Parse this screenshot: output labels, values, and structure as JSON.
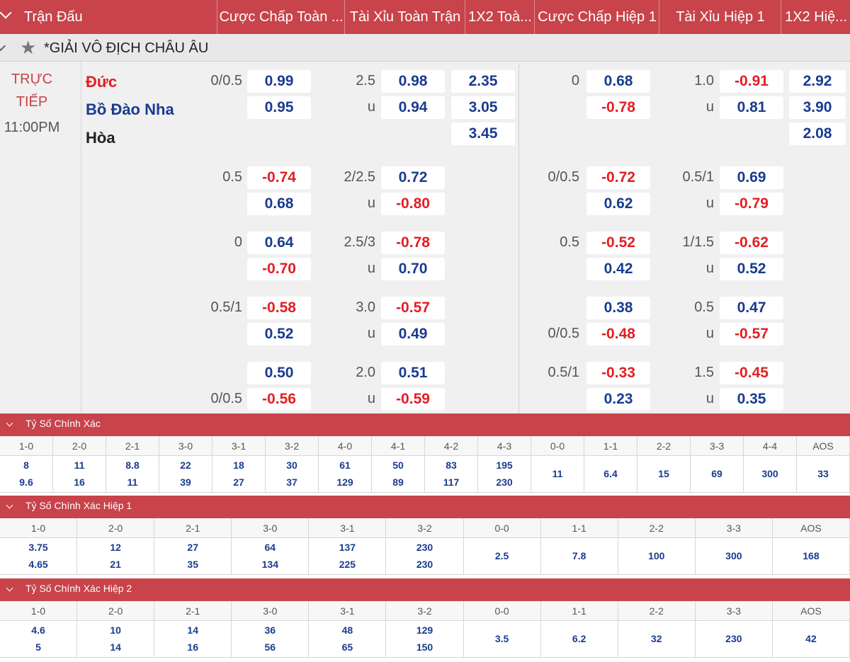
{
  "header": {
    "columns": [
      "Trận Đấu",
      "Cược Chấp Toàn ...",
      "Tài Xỉu Toàn Trận",
      "1X2 Toà...",
      "Cược Chấp Hiệp 1",
      "Tài Xỉu Hiệp 1",
      "1X2 Hiệ..."
    ]
  },
  "league": {
    "name": "*GIẢI VÔ ĐỊCH CHÂU ÂU"
  },
  "match": {
    "status_line1": "TRỰC",
    "status_line2": "TIẾP",
    "time": "11:00PM",
    "home": "Đức",
    "away": "Bồ Đào Nha",
    "draw": "Hòa",
    "rows": [
      {
        "ft_hc": [
          "0/0.5",
          ""
        ],
        "ft_hc_odds": [
          "0.99",
          "0.95"
        ],
        "ft_ou": [
          "2.5",
          "u"
        ],
        "ft_ou_odds": [
          "0.98",
          "0.94"
        ],
        "ft_1x2": [
          "2.35",
          "3.05",
          "3.45"
        ],
        "h1_hc": [
          "0",
          ""
        ],
        "h1_hc_odds": [
          "0.68",
          "-0.78"
        ],
        "h1_ou": [
          "1.0",
          "u"
        ],
        "h1_ou_odds": [
          "-0.91",
          "0.81"
        ],
        "h1_1x2": [
          "2.92",
          "3.90",
          "2.08"
        ]
      },
      {
        "ft_hc": [
          "0.5",
          ""
        ],
        "ft_hc_odds": [
          "-0.74",
          "0.68"
        ],
        "ft_ou": [
          "2/2.5",
          "u"
        ],
        "ft_ou_odds": [
          "0.72",
          "-0.80"
        ],
        "h1_hc": [
          "0/0.5",
          ""
        ],
        "h1_hc_odds": [
          "-0.72",
          "0.62"
        ],
        "h1_ou": [
          "0.5/1",
          "u"
        ],
        "h1_ou_odds": [
          "0.69",
          "-0.79"
        ]
      },
      {
        "ft_hc": [
          "0",
          ""
        ],
        "ft_hc_odds": [
          "0.64",
          "-0.70"
        ],
        "ft_ou": [
          "2.5/3",
          "u"
        ],
        "ft_ou_odds": [
          "-0.78",
          "0.70"
        ],
        "h1_hc": [
          "0.5",
          ""
        ],
        "h1_hc_odds": [
          "-0.52",
          "0.42"
        ],
        "h1_ou": [
          "1/1.5",
          "u"
        ],
        "h1_ou_odds": [
          "-0.62",
          "0.52"
        ]
      },
      {
        "ft_hc": [
          "0.5/1",
          ""
        ],
        "ft_hc_odds": [
          "-0.58",
          "0.52"
        ],
        "ft_ou": [
          "3.0",
          "u"
        ],
        "ft_ou_odds": [
          "-0.57",
          "0.49"
        ],
        "h1_hc": [
          "",
          "0/0.5"
        ],
        "h1_hc_odds": [
          "0.38",
          "-0.48"
        ],
        "h1_ou": [
          "0.5",
          "u"
        ],
        "h1_ou_odds": [
          "0.47",
          "-0.57"
        ]
      },
      {
        "ft_hc": [
          "",
          "0/0.5"
        ],
        "ft_hc_odds": [
          "0.50",
          "-0.56"
        ],
        "ft_ou": [
          "2.0",
          "u"
        ],
        "ft_ou_odds": [
          "0.51",
          "-0.59"
        ],
        "h1_hc": [
          "0.5/1",
          ""
        ],
        "h1_hc_odds": [
          "-0.33",
          "0.23"
        ],
        "h1_ou": [
          "1.5",
          "u"
        ],
        "h1_ou_odds": [
          "-0.45",
          "0.35"
        ]
      }
    ]
  },
  "sections": [
    {
      "title": "Tỷ Số Chính Xác",
      "labels": [
        "1-0",
        "2-0",
        "2-1",
        "3-0",
        "3-1",
        "3-2",
        "4-0",
        "4-1",
        "4-2",
        "4-3",
        "0-0",
        "1-1",
        "2-2",
        "3-3",
        "4-4",
        "AOS"
      ],
      "values": [
        [
          "8",
          "9.6"
        ],
        [
          "11",
          "16"
        ],
        [
          "8.8",
          "11"
        ],
        [
          "22",
          "39"
        ],
        [
          "18",
          "27"
        ],
        [
          "30",
          "37"
        ],
        [
          "61",
          "129"
        ],
        [
          "50",
          "89"
        ],
        [
          "83",
          "117"
        ],
        [
          "195",
          "230"
        ],
        [
          "11"
        ],
        [
          "6.4"
        ],
        [
          "15"
        ],
        [
          "69"
        ],
        [
          "300"
        ],
        [
          "33"
        ]
      ]
    },
    {
      "title": "Tỷ Số Chính Xác Hiệp 1",
      "labels": [
        "1-0",
        "2-0",
        "2-1",
        "3-0",
        "3-1",
        "3-2",
        "0-0",
        "1-1",
        "2-2",
        "3-3",
        "AOS"
      ],
      "values": [
        [
          "3.75",
          "4.65"
        ],
        [
          "12",
          "21"
        ],
        [
          "27",
          "35"
        ],
        [
          "64",
          "134"
        ],
        [
          "137",
          "225"
        ],
        [
          "230",
          "230"
        ],
        [
          "2.5"
        ],
        [
          "7.8"
        ],
        [
          "100"
        ],
        [
          "300"
        ],
        [
          "168"
        ]
      ]
    },
    {
      "title": "Tỷ Số Chính Xác Hiệp 2",
      "labels": [
        "1-0",
        "2-0",
        "2-1",
        "3-0",
        "3-1",
        "3-2",
        "0-0",
        "1-1",
        "2-2",
        "3-3",
        "AOS"
      ],
      "values": [
        [
          "4.6",
          "5"
        ],
        [
          "10",
          "14"
        ],
        [
          "14",
          "16"
        ],
        [
          "36",
          "56"
        ],
        [
          "48",
          "65"
        ],
        [
          "129",
          "150"
        ],
        [
          "3.5"
        ],
        [
          "6.2"
        ],
        [
          "32"
        ],
        [
          "230"
        ],
        [
          "42"
        ]
      ]
    }
  ],
  "colors": {
    "header_bg": "#c8434a",
    "odd_positive": "#1a3b8f",
    "odd_negative": "#e31e24"
  }
}
